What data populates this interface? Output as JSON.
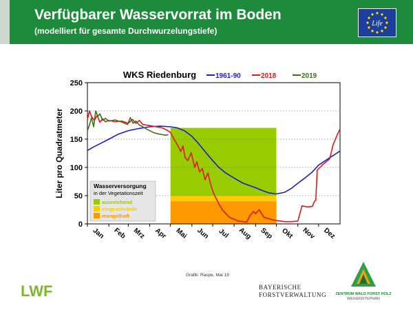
{
  "header": {
    "title": "Verfügbarer Wasservorrat im Boden",
    "subtitle": "(modelliert für gesamte Durchwurzelungstiefe)"
  },
  "eu_logo": {
    "text": "Life"
  },
  "colors": {
    "header_green": "#1e8a3c",
    "series_1961": "#1c1cc8",
    "series_2018": "#e01818",
    "series_2019": "#3c6e1e",
    "ausreichend": "#99cc00",
    "eingeschraenkt": "#ffcc00",
    "mangelhaft": "#ff9900"
  },
  "chart_data": {
    "type": "line",
    "title": "WKS Riedenburg",
    "ylabel": "Liter pro Quadratmeter",
    "ylim": [
      0,
      250
    ],
    "yticks": [
      0,
      50,
      100,
      150,
      200,
      250
    ],
    "xlim": [
      0,
      365
    ],
    "month_labels": [
      "Jan",
      "Feb",
      "Mrz",
      "Apr",
      "Mai",
      "Jun",
      "Jul",
      "Aug",
      "Sep",
      "Okt",
      "Nov",
      "Dez"
    ],
    "month_starts": [
      0,
      31,
      59,
      90,
      120,
      151,
      181,
      212,
      243,
      273,
      304,
      334
    ],
    "zones": [
      {
        "name": "ausreichend",
        "label": "ausreichend",
        "from": 50,
        "to": 170,
        "color": "#99cc00"
      },
      {
        "name": "eingeschraenkt",
        "label": "eingeschränkt",
        "from": 40,
        "to": 50,
        "color": "#ffcc00"
      },
      {
        "name": "mangelhaft",
        "label": "mangelhaft",
        "from": 0,
        "to": 40,
        "color": "#ff9900"
      }
    ],
    "zone_period": [
      120,
      273
    ],
    "legend_box": {
      "title": "Wasserversorgung",
      "subtitle": "in der Vegetationszeit"
    },
    "series": [
      {
        "name": "1961-90",
        "color": "#1c1cc8",
        "x": [
          0,
          10,
          20,
          31,
          45,
          59,
          75,
          90,
          105,
          120,
          130,
          140,
          151,
          160,
          170,
          181,
          190,
          200,
          212,
          225,
          243,
          255,
          262,
          273,
          285,
          295,
          304,
          315,
          325,
          334,
          345,
          355,
          365
        ],
        "y": [
          130,
          137,
          143,
          150,
          159,
          165,
          169,
          172,
          173,
          172,
          170,
          165,
          155,
          143,
          128,
          112,
          100,
          90,
          81,
          72,
          64,
          58,
          55,
          53,
          56,
          63,
          72,
          82,
          92,
          104,
          113,
          121,
          129
        ]
      },
      {
        "name": "2018",
        "color": "#e01818",
        "x": [
          0,
          3,
          6,
          10,
          14,
          18,
          22,
          26,
          31,
          40,
          50,
          59,
          65,
          70,
          75,
          80,
          90,
          100,
          108,
          115,
          120,
          125,
          130,
          135,
          138,
          141,
          145,
          150,
          155,
          158,
          162,
          166,
          170,
          174,
          178,
          182,
          186,
          190,
          195,
          200,
          205,
          212,
          218,
          225,
          230,
          235,
          240,
          243,
          248,
          255,
          260,
          268,
          273,
          285,
          295,
          304,
          310,
          318,
          325,
          328,
          330,
          332,
          336,
          340,
          345,
          350,
          355,
          360,
          365
        ],
        "y": [
          185,
          200,
          190,
          183,
          192,
          180,
          186,
          181,
          183,
          181,
          182,
          178,
          185,
          178,
          183,
          176,
          174,
          172,
          170,
          166,
          162,
          150,
          140,
          128,
          138,
          118,
          112,
          126,
          100,
          110,
          92,
          98,
          78,
          90,
          70,
          55,
          45,
          35,
          25,
          18,
          12,
          8,
          5,
          4,
          3,
          15,
          22,
          18,
          25,
          12,
          10,
          7,
          6,
          4,
          4,
          5,
          32,
          30,
          31,
          40,
          42,
          95,
          100,
          105,
          110,
          115,
          140,
          155,
          168
        ]
      },
      {
        "name": "2019",
        "color": "#3c6e1e",
        "x": [
          0,
          3,
          6,
          9,
          12,
          15,
          18,
          22,
          26,
          31,
          40,
          50,
          58,
          62,
          66,
          70,
          75,
          80,
          85,
          90,
          95,
          100,
          108,
          113,
          117
        ],
        "y": [
          165,
          175,
          188,
          172,
          200,
          190,
          195,
          183,
          187,
          182,
          184,
          180,
          176,
          188,
          178,
          182,
          175,
          172,
          168,
          165,
          162,
          160,
          158,
          157,
          158
        ]
      }
    ]
  },
  "credit": "Grafik: Raspe, Mai 19",
  "logos": {
    "lwf": "LWF",
    "bayern_line1": "BAYERISCHE",
    "bayern_line2": "FORSTVERWALTUNG",
    "zentrum_line1": "ZENTRUM WALD FORST HOLZ",
    "zentrum_line2": "WEIHENSTEPHAN"
  }
}
